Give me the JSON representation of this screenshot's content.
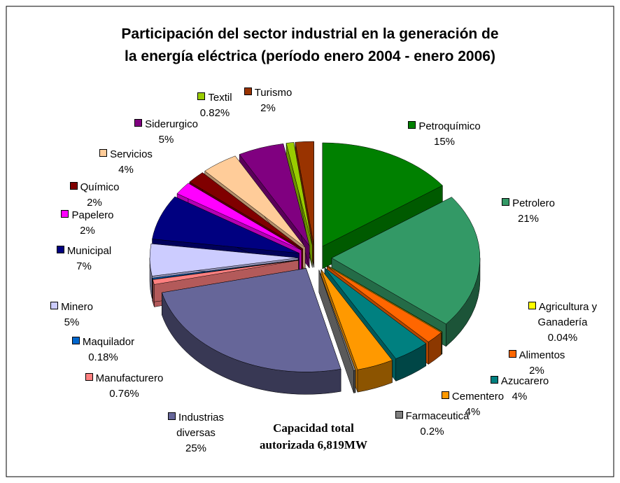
{
  "chart_data": {
    "type": "pie",
    "title": [
      "Participación del sector industrial en la generación de",
      "la energía eléctrica (período enero 2004 - enero 2006)"
    ],
    "annotation": [
      "Capacidad total",
      "autorizada 6,819MW"
    ],
    "categories": [
      "Petroquímico",
      "Petrolero",
      "Agricultura y Ganadería",
      "Alimentos",
      "Azucarero",
      "Cementero",
      "Farmaceutica",
      "Industrias diversas",
      "Manufacturero",
      "Maquilador",
      "Minero",
      "Municipal",
      "Papelero",
      "Químico",
      "Servicios",
      "Siderurgico",
      "Textil",
      "Turismo"
    ],
    "values": [
      15,
      21,
      0.04,
      2,
      4,
      4,
      0.2,
      25,
      0.76,
      0.18,
      5,
      7,
      2,
      2,
      4,
      5,
      0.82,
      2
    ],
    "value_labels": [
      "15%",
      "21%",
      "0.04%",
      "2%",
      "4%",
      "4%",
      "0.2%",
      "25%",
      "0.76%",
      "0.18%",
      "5%",
      "7%",
      "2%",
      "2%",
      "4%",
      "5%",
      "0.82%",
      "2%"
    ],
    "colors": [
      "#008000",
      "#339966",
      "#ffff00",
      "#ff6600",
      "#008080",
      "#ff9900",
      "#808080",
      "#666699",
      "#ff8080",
      "#0066cc",
      "#ccccff",
      "#000080",
      "#ff00ff",
      "#800000",
      "#ffcc99",
      "#800080",
      "#99cc00",
      "#993300"
    ]
  }
}
